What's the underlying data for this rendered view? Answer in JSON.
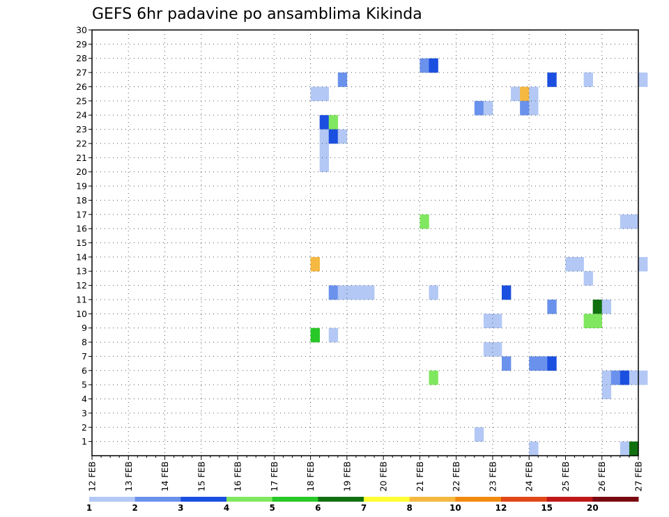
{
  "chart_data": {
    "type": "heatmap",
    "title": "GEFS 6hr padavine po ansamblima Kikinda",
    "y_ticks": [
      "1",
      "2",
      "3",
      "4",
      "5",
      "6",
      "7",
      "8",
      "9",
      "10",
      "11",
      "12",
      "13",
      "14",
      "15",
      "16",
      "17",
      "18",
      "19",
      "20",
      "21",
      "22",
      "23",
      "24",
      "25",
      "26",
      "27",
      "28",
      "29",
      "30"
    ],
    "x_ticks": [
      "12 FEB",
      "13 FEB",
      "14 FEB",
      "15 FEB",
      "16 FEB",
      "17 FEB",
      "18 FEB",
      "19 FEB",
      "20 FEB",
      "21 FEB",
      "22 FEB",
      "23 FEB",
      "24 FEB",
      "25 FEB",
      "26 FEB",
      "27 FEB"
    ],
    "grid": true,
    "legend": {
      "placement": "bottom",
      "labels": [
        "1",
        "2",
        "3",
        "4",
        "5",
        "6",
        "7",
        "8",
        "10",
        "12",
        "15",
        "20"
      ],
      "colors": [
        "#b3c8f5",
        "#6a92ed",
        "#1b4fe0",
        "#80e860",
        "#28c828",
        "#107010",
        "#ffff33",
        "#f5b840",
        "#f28a10",
        "#e04818",
        "#c01818",
        "#7a0810"
      ]
    },
    "cells": [
      {
        "x": 18.0,
        "y": 26,
        "color": "#b3c8f5"
      },
      {
        "x": 18.25,
        "y": 26,
        "color": "#b3c8f5"
      },
      {
        "x": 18.75,
        "y": 27,
        "color": "#6a92ed"
      },
      {
        "x": 18.25,
        "y": 24,
        "color": "#1b4fe0"
      },
      {
        "x": 18.5,
        "y": 24,
        "color": "#80e860"
      },
      {
        "x": 18.25,
        "y": 23,
        "color": "#b3c8f5"
      },
      {
        "x": 18.5,
        "y": 23,
        "color": "#1b4fe0"
      },
      {
        "x": 18.75,
        "y": 23,
        "color": "#b3c8f5"
      },
      {
        "x": 18.25,
        "y": 22,
        "color": "#b3c8f5"
      },
      {
        "x": 18.25,
        "y": 21,
        "color": "#b3c8f5"
      },
      {
        "x": 21.0,
        "y": 28,
        "color": "#6a92ed"
      },
      {
        "x": 21.25,
        "y": 28,
        "color": "#1b4fe0"
      },
      {
        "x": 22.5,
        "y": 25,
        "color": "#6a92ed"
      },
      {
        "x": 22.75,
        "y": 25,
        "color": "#b3c8f5"
      },
      {
        "x": 23.5,
        "y": 26,
        "color": "#b3c8f5"
      },
      {
        "x": 23.75,
        "y": 26,
        "color": "#f5b840"
      },
      {
        "x": 24.0,
        "y": 26,
        "color": "#b3c8f5"
      },
      {
        "x": 23.75,
        "y": 25,
        "color": "#6a92ed"
      },
      {
        "x": 24.0,
        "y": 25,
        "color": "#b3c8f5"
      },
      {
        "x": 24.5,
        "y": 27,
        "color": "#1b4fe0"
      },
      {
        "x": 25.5,
        "y": 27,
        "color": "#b3c8f5"
      },
      {
        "x": 27.0,
        "y": 27,
        "color": "#b3c8f5"
      },
      {
        "x": 21.0,
        "y": 17,
        "color": "#80e860"
      },
      {
        "x": 26.5,
        "y": 17,
        "color": "#b3c8f5"
      },
      {
        "x": 26.75,
        "y": 17,
        "color": "#b3c8f5"
      },
      {
        "x": 18.0,
        "y": 14,
        "color": "#f5b840"
      },
      {
        "x": 25.0,
        "y": 14,
        "color": "#b3c8f5"
      },
      {
        "x": 25.25,
        "y": 14,
        "color": "#b3c8f5"
      },
      {
        "x": 27.0,
        "y": 14,
        "color": "#b3c8f5"
      },
      {
        "x": 25.5,
        "y": 13,
        "color": "#b3c8f5"
      },
      {
        "x": 18.5,
        "y": 12,
        "color": "#6a92ed"
      },
      {
        "x": 18.75,
        "y": 12,
        "color": "#b3c8f5"
      },
      {
        "x": 19.0,
        "y": 12,
        "color": "#b3c8f5"
      },
      {
        "x": 19.25,
        "y": 12,
        "color": "#b3c8f5"
      },
      {
        "x": 19.5,
        "y": 12,
        "color": "#b3c8f5"
      },
      {
        "x": 21.25,
        "y": 12,
        "color": "#b3c8f5"
      },
      {
        "x": 23.25,
        "y": 12,
        "color": "#1b4fe0"
      },
      {
        "x": 24.5,
        "y": 11,
        "color": "#6a92ed"
      },
      {
        "x": 25.75,
        "y": 11,
        "color": "#107010"
      },
      {
        "x": 26.0,
        "y": 11,
        "color": "#b3c8f5"
      },
      {
        "x": 22.75,
        "y": 10,
        "color": "#b3c8f5"
      },
      {
        "x": 23.0,
        "y": 10,
        "color": "#b3c8f5"
      },
      {
        "x": 25.5,
        "y": 10,
        "color": "#80e860"
      },
      {
        "x": 25.75,
        "y": 10,
        "color": "#80e860"
      },
      {
        "x": 18.0,
        "y": 9,
        "color": "#28c828"
      },
      {
        "x": 18.5,
        "y": 9,
        "color": "#b3c8f5"
      },
      {
        "x": 22.75,
        "y": 8,
        "color": "#b3c8f5"
      },
      {
        "x": 23.0,
        "y": 8,
        "color": "#b3c8f5"
      },
      {
        "x": 23.25,
        "y": 7,
        "color": "#6a92ed"
      },
      {
        "x": 24.0,
        "y": 7,
        "color": "#6a92ed"
      },
      {
        "x": 24.25,
        "y": 7,
        "color": "#6a92ed"
      },
      {
        "x": 24.5,
        "y": 7,
        "color": "#1b4fe0"
      },
      {
        "x": 21.25,
        "y": 6,
        "color": "#80e860"
      },
      {
        "x": 26.0,
        "y": 6,
        "color": "#b3c8f5"
      },
      {
        "x": 26.25,
        "y": 6,
        "color": "#6a92ed"
      },
      {
        "x": 26.5,
        "y": 6,
        "color": "#1b4fe0"
      },
      {
        "x": 26.75,
        "y": 6,
        "color": "#b3c8f5"
      },
      {
        "x": 27.0,
        "y": 6,
        "color": "#b3c8f5"
      },
      {
        "x": 26.0,
        "y": 5,
        "color": "#b3c8f5"
      },
      {
        "x": 22.5,
        "y": 2,
        "color": "#b3c8f5"
      },
      {
        "x": 24.0,
        "y": 1,
        "color": "#b3c8f5"
      },
      {
        "x": 26.5,
        "y": 1,
        "color": "#b3c8f5"
      },
      {
        "x": 26.75,
        "y": 1,
        "color": "#107010"
      }
    ]
  }
}
